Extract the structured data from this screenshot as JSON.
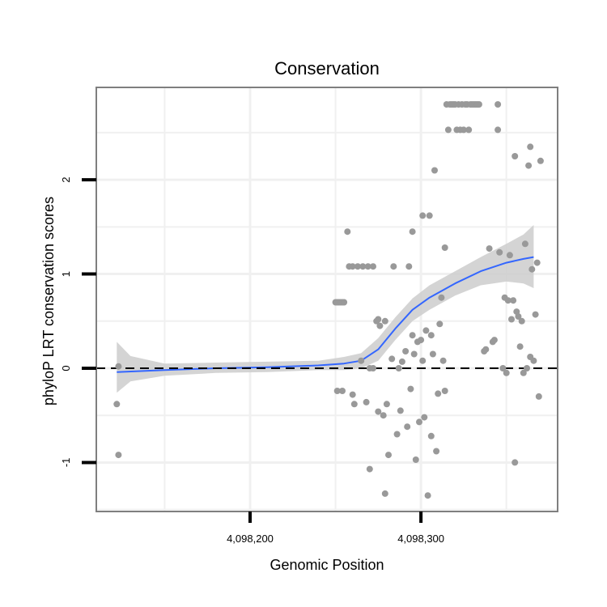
{
  "chart_data": {
    "type": "scatter",
    "title": "Conservation",
    "xlabel": "Genomic Position",
    "ylabel": "phyloP LRT conservation scores",
    "xlim": [
      4098110,
      4098380
    ],
    "ylim": [
      -1.52,
      2.98
    ],
    "xticks": [
      4098200,
      4098300
    ],
    "xtick_labels": [
      "4,098,200",
      "4,098,300"
    ],
    "yticks": [
      -1,
      0,
      1,
      2
    ],
    "ytick_labels": [
      "-1",
      "0",
      "1",
      "2"
    ],
    "grid": true,
    "hline": 0,
    "points": [
      [
        4098122,
        -0.38
      ],
      [
        4098123,
        -0.92
      ],
      [
        4098123,
        0.02
      ],
      [
        4098250,
        0.7
      ],
      [
        4098251,
        0.7
      ],
      [
        4098252,
        0.7
      ],
      [
        4098253,
        0.7
      ],
      [
        4098254,
        0.7
      ],
      [
        4098255,
        0.7
      ],
      [
        4098251,
        -0.24
      ],
      [
        4098254,
        -0.24
      ],
      [
        4098257,
        1.45
      ],
      [
        4098258,
        1.08
      ],
      [
        4098260,
        1.08
      ],
      [
        4098263,
        1.08
      ],
      [
        4098266,
        1.08
      ],
      [
        4098269,
        1.08
      ],
      [
        4098272,
        1.08
      ],
      [
        4098260,
        -0.28
      ],
      [
        4098261,
        -0.38
      ],
      [
        4098265,
        0.08
      ],
      [
        4098268,
        -0.36
      ],
      [
        4098270,
        0.0
      ],
      [
        4098270,
        -1.07
      ],
      [
        4098272,
        0.0
      ],
      [
        4098274,
        0.5
      ],
      [
        4098275,
        0.52
      ],
      [
        4098275,
        -0.46
      ],
      [
        4098276,
        0.45
      ],
      [
        4098278,
        -0.5
      ],
      [
        4098279,
        0.5
      ],
      [
        4098279,
        -1.33
      ],
      [
        4098280,
        -0.38
      ],
      [
        4098281,
        -0.92
      ],
      [
        4098283,
        0.1
      ],
      [
        4098284,
        1.08
      ],
      [
        4098286,
        -0.7
      ],
      [
        4098287,
        0.0
      ],
      [
        4098288,
        -0.45
      ],
      [
        4098289,
        0.07
      ],
      [
        4098291,
        0.18
      ],
      [
        4098292,
        -0.62
      ],
      [
        4098293,
        1.08
      ],
      [
        4098294,
        -0.22
      ],
      [
        4098295,
        1.45
      ],
      [
        4098295,
        0.35
      ],
      [
        4098296,
        0.15
      ],
      [
        4098297,
        -0.97
      ],
      [
        4098298,
        0.28
      ],
      [
        4098299,
        -0.57
      ],
      [
        4098300,
        0.3
      ],
      [
        4098301,
        0.08
      ],
      [
        4098301,
        1.62
      ],
      [
        4098302,
        -0.52
      ],
      [
        4098303,
        0.4
      ],
      [
        4098304,
        -1.35
      ],
      [
        4098305,
        1.62
      ],
      [
        4098306,
        0.35
      ],
      [
        4098306,
        -0.72
      ],
      [
        4098307,
        0.15
      ],
      [
        4098308,
        2.1
      ],
      [
        4098309,
        -0.88
      ],
      [
        4098310,
        -0.27
      ],
      [
        4098311,
        0.47
      ],
      [
        4098312,
        0.75
      ],
      [
        4098313,
        0.08
      ],
      [
        4098314,
        -0.24
      ],
      [
        4098314,
        1.28
      ],
      [
        4098315,
        2.8
      ],
      [
        4098316,
        2.53
      ],
      [
        4098317,
        2.8
      ],
      [
        4098318,
        2.8
      ],
      [
        4098319,
        2.8
      ],
      [
        4098320,
        2.8
      ],
      [
        4098321,
        2.53
      ],
      [
        4098322,
        2.8
      ],
      [
        4098323,
        2.53
      ],
      [
        4098324,
        2.8
      ],
      [
        4098325,
        2.53
      ],
      [
        4098326,
        2.8
      ],
      [
        4098327,
        2.8
      ],
      [
        4098328,
        2.53
      ],
      [
        4098329,
        2.8
      ],
      [
        4098330,
        2.8
      ],
      [
        4098331,
        2.8
      ],
      [
        4098332,
        2.8
      ],
      [
        4098333,
        2.8
      ],
      [
        4098334,
        2.8
      ],
      [
        4098337,
        0.18
      ],
      [
        4098338,
        0.2
      ],
      [
        4098340,
        1.27
      ],
      [
        4098342,
        0.28
      ],
      [
        4098343,
        0.3
      ],
      [
        4098345,
        2.8
      ],
      [
        4098345,
        2.53
      ],
      [
        4098346,
        1.23
      ],
      [
        4098348,
        0.0
      ],
      [
        4098349,
        0.75
      ],
      [
        4098350,
        -0.05
      ],
      [
        4098351,
        0.72
      ],
      [
        4098352,
        1.2
      ],
      [
        4098353,
        0.52
      ],
      [
        4098354,
        0.72
      ],
      [
        4098355,
        2.25
      ],
      [
        4098355,
        -1.0
      ],
      [
        4098356,
        0.6
      ],
      [
        4098357,
        0.55
      ],
      [
        4098358,
        0.23
      ],
      [
        4098359,
        0.5
      ],
      [
        4098360,
        -0.05
      ],
      [
        4098361,
        1.32
      ],
      [
        4098362,
        0.0
      ],
      [
        4098363,
        2.15
      ],
      [
        4098364,
        2.35
      ],
      [
        4098364,
        0.12
      ],
      [
        4098365,
        1.05
      ],
      [
        4098366,
        0.08
      ],
      [
        4098367,
        0.57
      ],
      [
        4098368,
        1.12
      ],
      [
        4098369,
        -0.3
      ],
      [
        4098370,
        2.2
      ]
    ],
    "smooth": [
      [
        4098122,
        -0.04
      ],
      [
        4098150,
        -0.02
      ],
      [
        4098180,
        0.0
      ],
      [
        4098210,
        0.01
      ],
      [
        4098240,
        0.03
      ],
      [
        4098255,
        0.05
      ],
      [
        4098265,
        0.08
      ],
      [
        4098275,
        0.2
      ],
      [
        4098285,
        0.42
      ],
      [
        4098295,
        0.62
      ],
      [
        4098305,
        0.75
      ],
      [
        4098320,
        0.9
      ],
      [
        4098335,
        1.03
      ],
      [
        4098350,
        1.12
      ],
      [
        4098360,
        1.16
      ],
      [
        4098366,
        1.18
      ]
    ],
    "ribbon": [
      [
        4098122,
        -0.26,
        0.28
      ],
      [
        4098130,
        -0.14,
        0.13
      ],
      [
        4098150,
        -0.08,
        0.05
      ],
      [
        4098180,
        -0.05,
        0.06
      ],
      [
        4098210,
        -0.04,
        0.07
      ],
      [
        4098240,
        -0.02,
        0.08
      ],
      [
        4098255,
        -0.02,
        0.12
      ],
      [
        4098265,
        0.0,
        0.16
      ],
      [
        4098275,
        0.08,
        0.32
      ],
      [
        4098285,
        0.3,
        0.54
      ],
      [
        4098295,
        0.5,
        0.74
      ],
      [
        4098305,
        0.62,
        0.88
      ],
      [
        4098320,
        0.77,
        1.03
      ],
      [
        4098335,
        0.88,
        1.18
      ],
      [
        4098350,
        0.92,
        1.32
      ],
      [
        4098360,
        0.9,
        1.42
      ],
      [
        4098366,
        0.85,
        1.52
      ]
    ],
    "colors": {
      "points": "#999999",
      "smooth": "#3366ff",
      "ribbon": "#cccccc",
      "grid": "#f0f0f0",
      "panel_border": "#7f7f7f"
    }
  }
}
